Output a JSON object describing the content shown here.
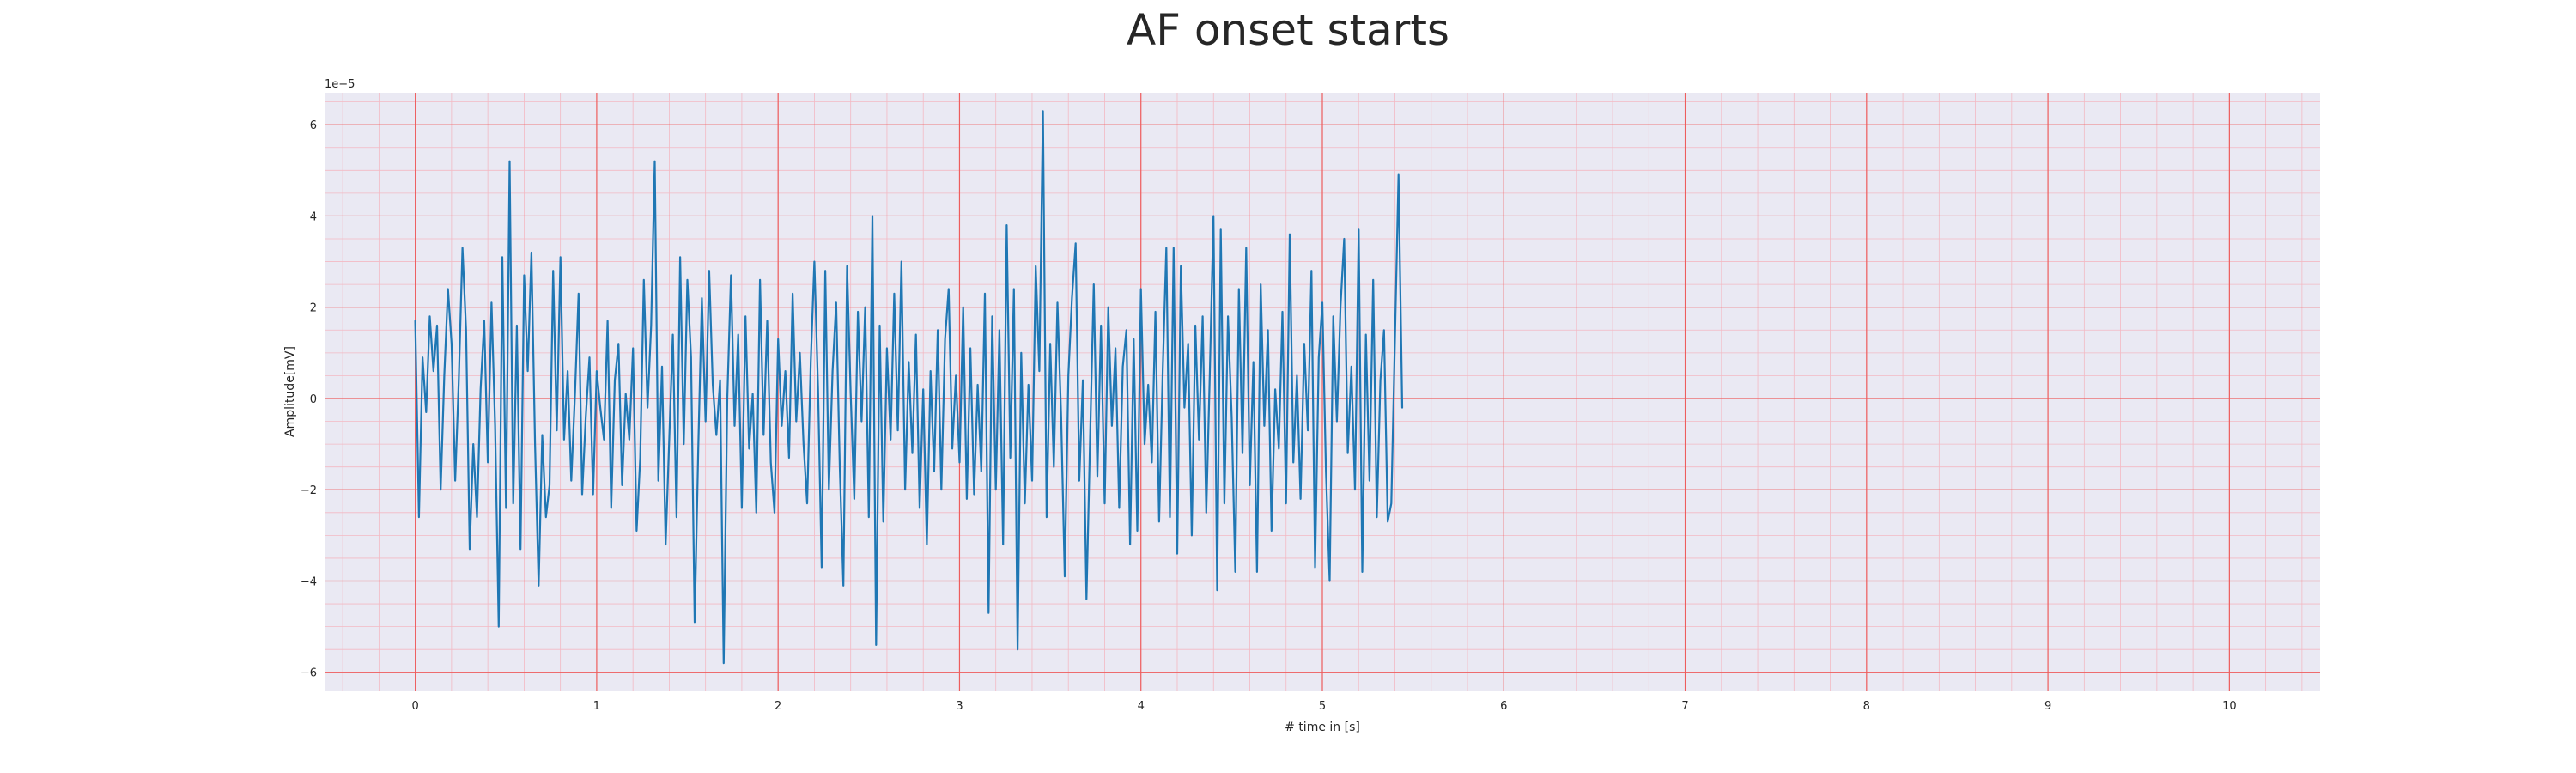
{
  "chart_data": {
    "type": "line",
    "title": "AF onset starts",
    "xlabel": "# time in [s]",
    "ylabel": "Amplitude[mV]",
    "offset_text": "1e−5",
    "xlim": [
      -0.5,
      10.5
    ],
    "ylim": [
      -6.4,
      6.7
    ],
    "x_ticks": [
      0,
      1,
      2,
      3,
      4,
      5,
      6,
      7,
      8,
      9,
      10
    ],
    "y_ticks": [
      -6,
      -4,
      -2,
      0,
      2,
      4,
      6
    ],
    "grid": true,
    "minor_grid": true,
    "colors": {
      "line": "#1f77b4",
      "plot_background": "#eae9f3",
      "major_grid": "#ee5d5d",
      "minor_grid": "#f3b9c3"
    },
    "series": [
      {
        "x_start": 0,
        "x_step": 0.02,
        "values": [
          1.7,
          -2.6,
          0.9,
          -0.3,
          1.8,
          0.6,
          1.6,
          -2.0,
          0.5,
          2.4,
          1.2,
          -1.8,
          0.4,
          3.3,
          1.5,
          -3.3,
          -1.0,
          -2.6,
          0.2,
          1.7,
          -1.4,
          2.1,
          -0.6,
          -5.0,
          3.1,
          -2.4,
          5.2,
          -2.3,
          1.6,
          -3.3,
          2.7,
          0.6,
          3.2,
          -1.0,
          -4.1,
          -0.8,
          -2.6,
          -1.9,
          2.8,
          -0.7,
          3.1,
          -0.9,
          0.6,
          -1.8,
          0.1,
          2.3,
          -2.1,
          -0.4,
          0.9,
          -2.1,
          0.6,
          -0.2,
          -0.9,
          1.7,
          -2.4,
          0.4,
          1.2,
          -1.9,
          0.1,
          -0.9,
          1.1,
          -2.9,
          -1.3,
          2.6,
          -0.2,
          1.6,
          5.2,
          -1.8,
          0.7,
          -3.2,
          -0.9,
          1.4,
          -2.6,
          3.1,
          -1.0,
          2.6,
          0.9,
          -4.9,
          -1.1,
          2.2,
          -0.5,
          2.8,
          0.3,
          -0.8,
          0.4,
          -5.8,
          0.0,
          2.7,
          -0.6,
          1.4,
          -2.4,
          1.8,
          -1.1,
          0.1,
          -2.5,
          2.6,
          -0.8,
          1.7,
          -1.4,
          -2.5,
          1.3,
          -0.6,
          0.6,
          -1.3,
          2.3,
          -0.5,
          1.0,
          -1.0,
          -2.3,
          0.8,
          3.0,
          0.2,
          -3.7,
          2.8,
          -2.0,
          0.6,
          2.1,
          -1.5,
          -4.1,
          2.9,
          0.1,
          -2.2,
          1.9,
          -0.5,
          2.0,
          -2.6,
          4.0,
          -5.4,
          1.6,
          -2.7,
          1.1,
          -0.9,
          2.3,
          -0.7,
          3.0,
          -2.0,
          0.8,
          -1.2,
          1.4,
          -2.4,
          0.2,
          -3.2,
          0.6,
          -1.6,
          1.5,
          -2.0,
          1.3,
          2.4,
          -1.1,
          0.5,
          -1.4,
          2.0,
          -2.2,
          1.1,
          -2.1,
          0.3,
          -1.6,
          2.3,
          -4.7,
          1.8,
          -2.0,
          1.5,
          -3.2,
          3.8,
          -1.3,
          2.4,
          -5.5,
          1.0,
          -2.3,
          0.3,
          -1.8,
          2.9,
          0.6,
          6.3,
          -2.6,
          1.2,
          -1.5,
          2.1,
          -0.4,
          -3.9,
          0.5,
          2.2,
          3.4,
          -1.8,
          0.4,
          -4.4,
          -0.8,
          2.5,
          -1.7,
          1.6,
          -2.3,
          2.0,
          -0.6,
          1.1,
          -2.4,
          0.7,
          1.5,
          -3.2,
          1.3,
          -2.9,
          2.4,
          -1.0,
          0.3,
          -1.4,
          1.9,
          -2.7,
          0.6,
          3.3,
          -2.6,
          3.3,
          -3.4,
          2.9,
          -0.2,
          1.2,
          -3.0,
          1.6,
          -0.9,
          1.8,
          -2.5,
          0.6,
          4.0,
          -4.2,
          3.7,
          -2.3,
          1.8,
          -0.4,
          -3.8,
          2.4,
          -1.2,
          3.3,
          -1.9,
          0.8,
          -3.8,
          2.5,
          -0.6,
          1.5,
          -2.9,
          0.2,
          -1.1,
          1.9,
          -2.3,
          3.6,
          -1.4,
          0.5,
          -2.2,
          1.2,
          -0.7,
          2.8,
          -3.7,
          0.9,
          2.1,
          -1.6,
          -4.0,
          1.8,
          -0.5,
          2.0,
          3.5,
          -1.2,
          0.7,
          -2.0,
          3.7,
          -3.8,
          1.4,
          -1.8,
          2.6,
          -2.6,
          0.4,
          1.5,
          -2.7,
          -2.3,
          1.3,
          4.9,
          -0.2
        ]
      }
    ]
  }
}
